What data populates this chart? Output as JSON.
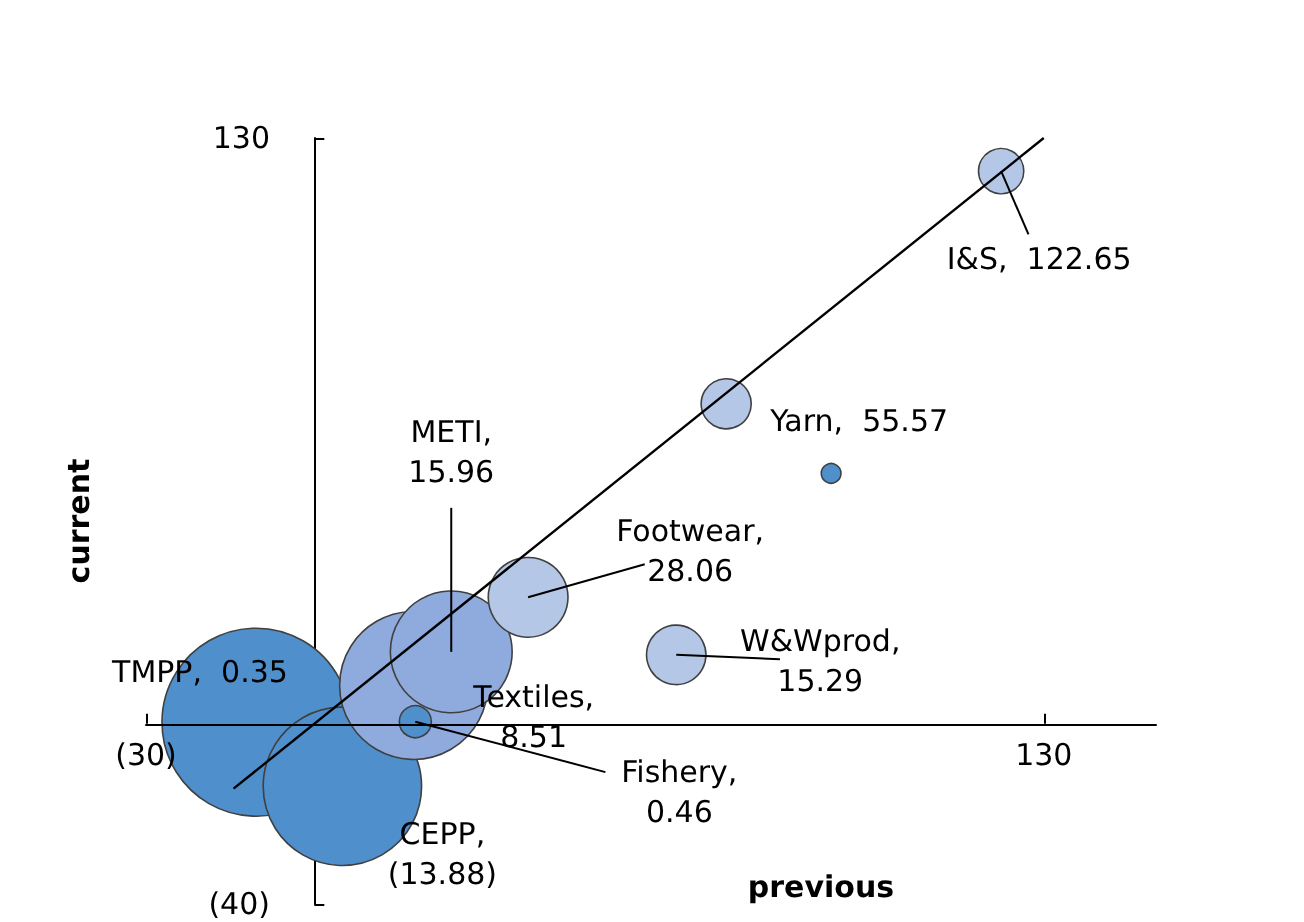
{
  "chart_data": {
    "type": "bubble",
    "xlabel": "previous",
    "ylabel": "current",
    "xlim": [
      -30,
      150
    ],
    "xticks": [
      {
        "value": -30,
        "label": "(30)"
      },
      130
    ],
    "ylim": [
      -40,
      130
    ],
    "yticks": [
      {
        "value": -40,
        "label": "(40)"
      },
      130
    ],
    "grid": false,
    "series": [
      {
        "type": "bubble",
        "x": [
          -10.4,
          5.0,
          17.7,
          24.4,
          18.0,
          38.1,
          64.5,
          73.4,
          92.1,
          122.4
        ],
        "values": [
          0.35,
          -13.88,
          8.51,
          15.96,
          0.46,
          28.06,
          15.29,
          71.0,
          55.57,
          122.65
        ],
        "sizes": [
          1,
          0.71,
          0.62,
          0.42,
          0.029,
          0.18,
          0.1,
          0.071,
          0.011,
          0.058
        ],
        "colors": [
          "#4e8fcc",
          "#4e8fcc",
          "#8faadc",
          "#8faadc",
          "#4e8fcc",
          "#b4c7e7",
          "#b4c7e7",
          "#b4c7e7",
          "#4e8fcc",
          "#b4c7e7"
        ],
        "value_labels": [
          "TMPP,  0.35",
          "CEPP, (13.88)",
          "Textiles, 8.51",
          "METI, 15.96",
          "Fishery, 0.46",
          "Footwear, 28.06",
          "W&Wprod, 15.29",
          null,
          "Yarn,  55.57",
          "I&S,  122.65"
        ]
      },
      {
        "type": "line",
        "color": "#000000",
        "x": [
          -14.4,
          130
        ],
        "values": [
          -14.4,
          130
        ]
      }
    ]
  }
}
